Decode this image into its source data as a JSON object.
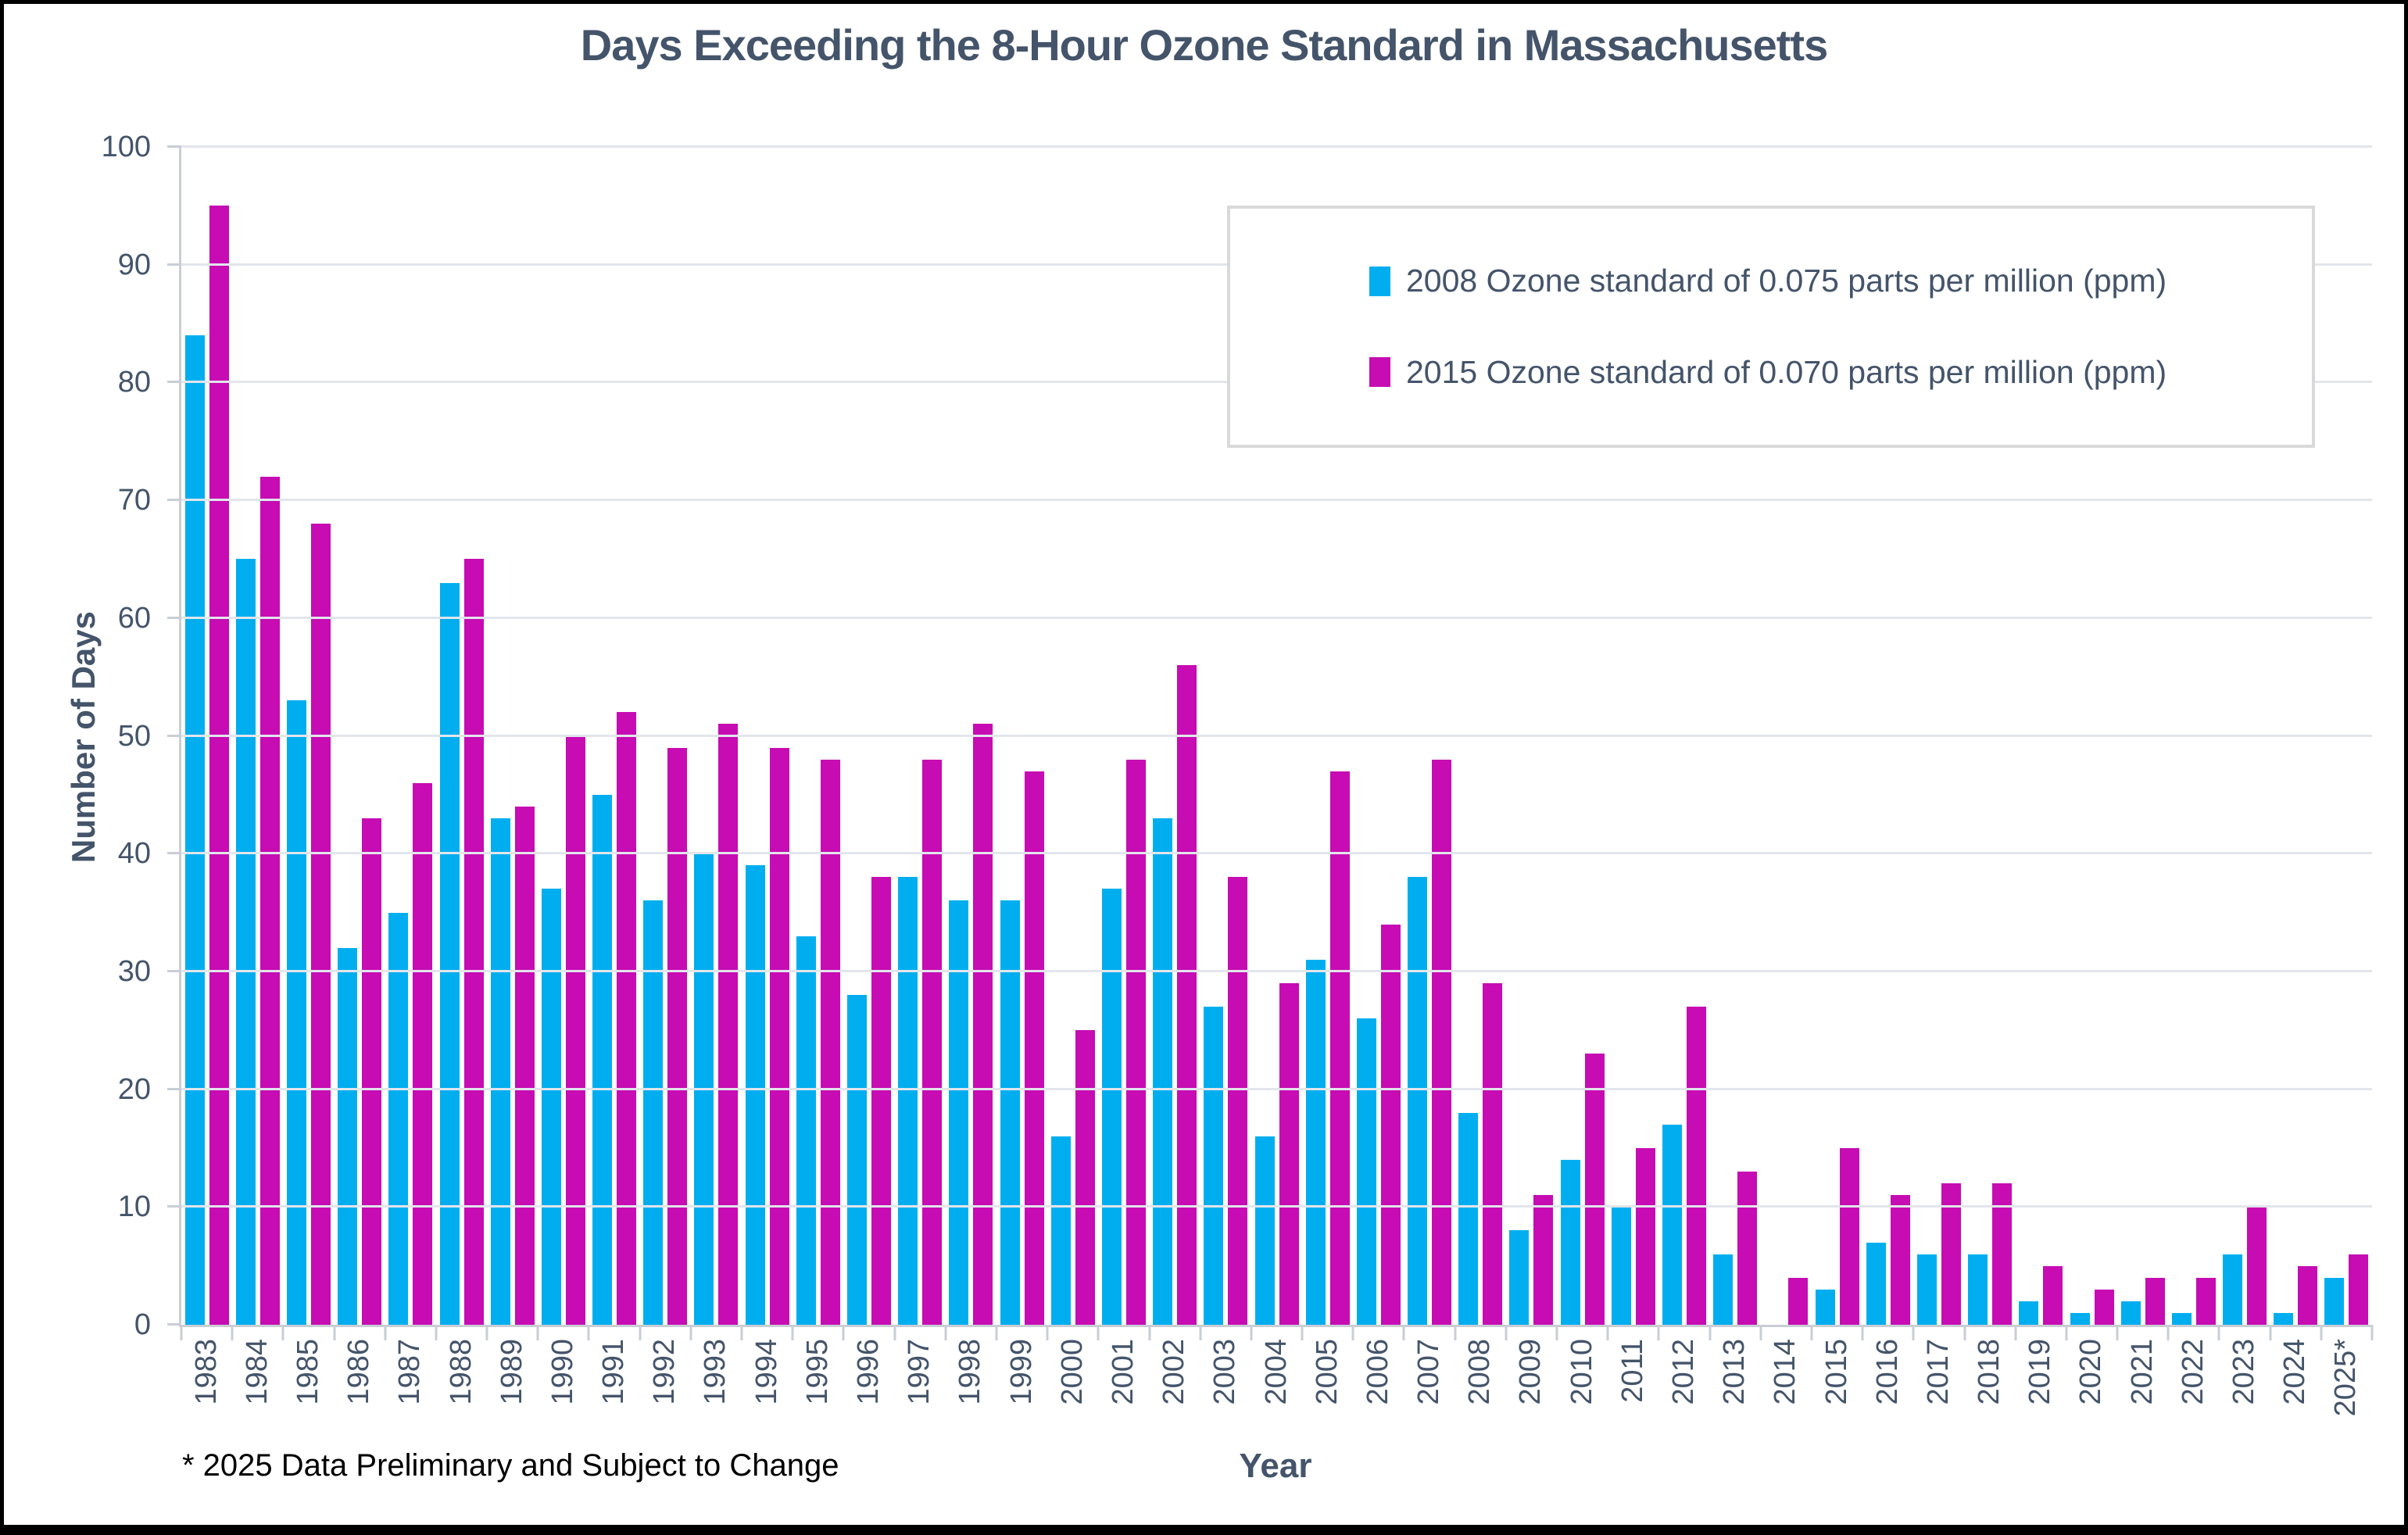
{
  "title": "Days Exceeding the 8-Hour Ozone Standard in Massachusetts",
  "footnote": "* 2025 Data Preliminary and Subject to Change",
  "colors": {
    "series_2008": "#00AEEF",
    "series_2015": "#C60CB2",
    "text": "#44546A",
    "gridline": "#E2E5EB",
    "axis_line": "#C9CED6",
    "legend_border": "#D9D9D9",
    "frame": "#000000"
  },
  "chart_data": {
    "type": "bar",
    "title": "Days Exceeding the 8-Hour Ozone Standard in Massachusetts",
    "xlabel": "Year",
    "ylabel": "Number of Days",
    "ylim": [
      0,
      100
    ],
    "ytick_step": 10,
    "grid": "horizontal",
    "legend_position": "upper right",
    "categories": [
      "1983",
      "1984",
      "1985",
      "1986",
      "1987",
      "1988",
      "1989",
      "1990",
      "1991",
      "1992",
      "1993",
      "1994",
      "1995",
      "1996",
      "1997",
      "1998",
      "1999",
      "2000",
      "2001",
      "2002",
      "2003",
      "2004",
      "2005",
      "2006",
      "2007",
      "2008",
      "2009",
      "2010",
      "2011",
      "2012",
      "2013",
      "2014",
      "2015",
      "2016",
      "2017",
      "2018",
      "2019",
      "2020",
      "2021",
      "2022",
      "2023",
      "2024",
      "2025*"
    ],
    "series": [
      {
        "name": "2008 Ozone standard of 0.075 parts per million (ppm)",
        "color_key": "series_2008",
        "values": [
          84,
          65,
          53,
          32,
          35,
          63,
          43,
          37,
          45,
          36,
          40,
          39,
          33,
          28,
          38,
          36,
          36,
          16,
          37,
          43,
          27,
          16,
          31,
          26,
          38,
          18,
          8,
          14,
          10,
          17,
          6,
          0,
          3,
          7,
          6,
          6,
          2,
          1,
          2,
          1,
          6,
          1,
          4
        ]
      },
      {
        "name": "2015 Ozone standard of 0.070 parts per million (ppm)",
        "color_key": "series_2015",
        "values": [
          95,
          72,
          68,
          43,
          46,
          65,
          44,
          50,
          52,
          49,
          51,
          49,
          48,
          38,
          48,
          51,
          47,
          25,
          48,
          56,
          38,
          29,
          47,
          34,
          48,
          29,
          11,
          23,
          15,
          27,
          13,
          4,
          15,
          11,
          12,
          12,
          5,
          3,
          4,
          4,
          10,
          5,
          6
        ]
      }
    ]
  }
}
